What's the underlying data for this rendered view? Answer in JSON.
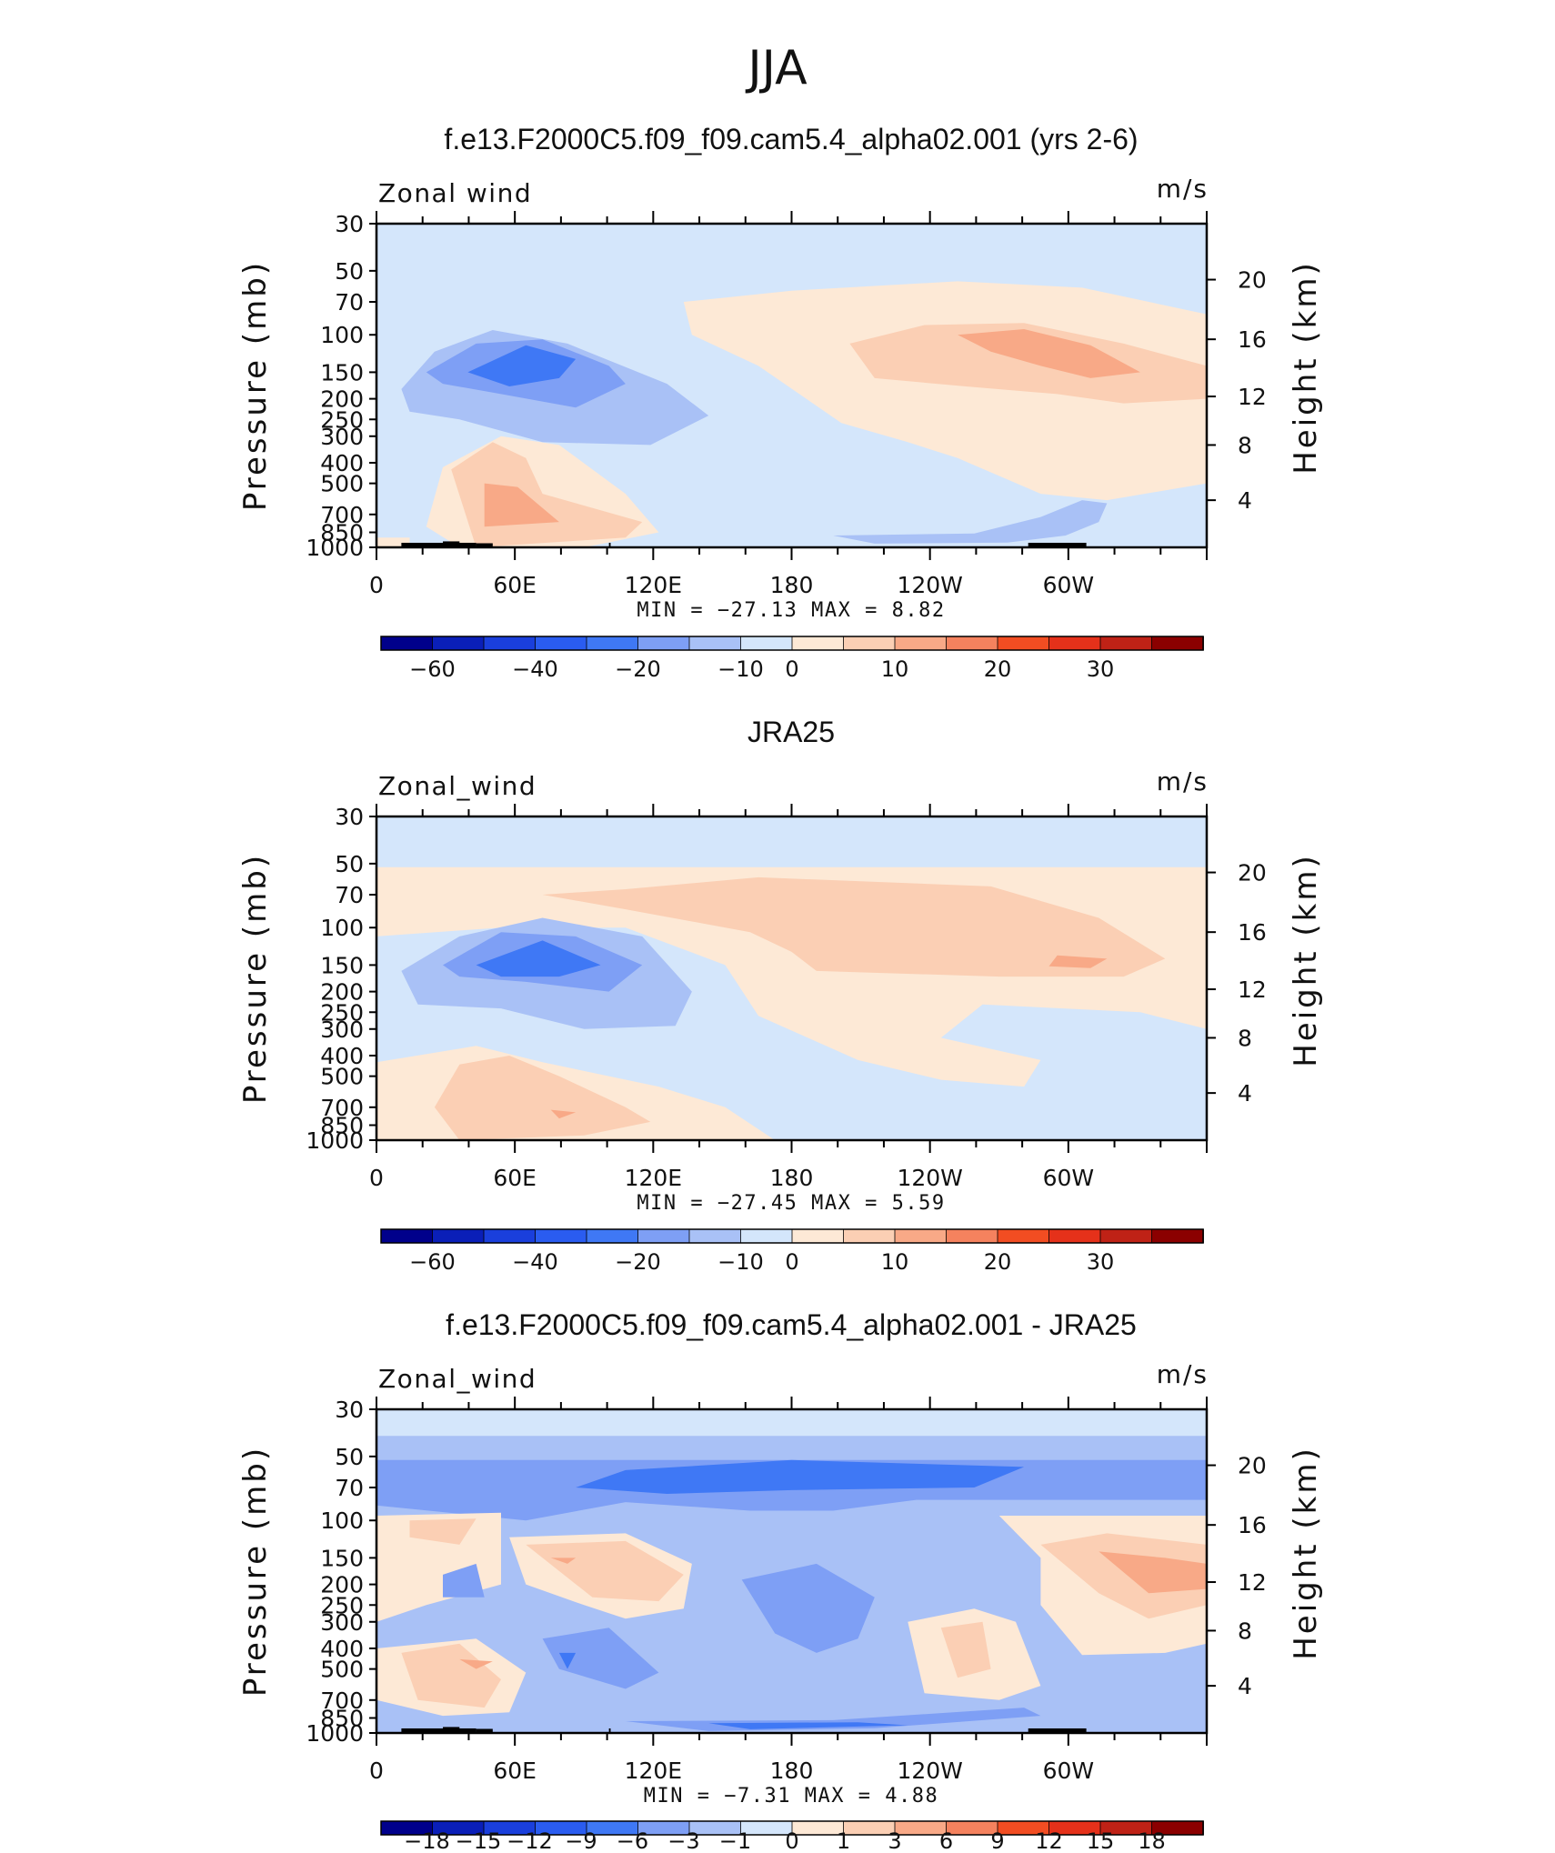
{
  "page_title": "JJA",
  "colors": {
    "dark_blue": "#00008b",
    "blue1": "#0a1fb8",
    "blue2": "#1a3fdc",
    "blue3": "#2a5cf0",
    "blue4": "#3f78f5",
    "blue5": "#7e9ff5",
    "blue6": "#a9c1f6",
    "blue7": "#d4e6fb",
    "orange1": "#fde9d6",
    "orange2": "#fbcfb4",
    "orange3": "#f8a987",
    "orange4": "#f5825e",
    "red1": "#f24d22",
    "red2": "#e5311a",
    "red3": "#bf2216",
    "dark_red": "#8b0000"
  },
  "chart_data": [
    {
      "type": "heatmap",
      "title": "f.e13.F2000C5.f09_f09.cam5.4_alpha02.001 (yrs 2-6)",
      "left_label": "Zonal wind",
      "units": "m/s",
      "ylabel": "Pressure (mb)",
      "y2label": "Height (km)",
      "pressure_ticks": [
        "30",
        "50",
        "70",
        "100",
        "150",
        "200",
        "250",
        "300",
        "400",
        "500",
        "700",
        "850",
        "1000"
      ],
      "height_ticks": [
        "20",
        "16",
        "12",
        "8",
        "4"
      ],
      "x_ticks": [
        "0",
        "60E",
        "120E",
        "180",
        "120W",
        "60W"
      ],
      "minmax_label": "MIN = −27.13  MAX =    8.82",
      "min": -27.13,
      "max": 8.82,
      "colorbar_labels": [
        "−60",
        "−40",
        "−20",
        "−10",
        "0",
        "10",
        "20",
        "30"
      ]
    },
    {
      "type": "heatmap",
      "title": "JRA25",
      "left_label": "Zonal_wind",
      "units": "m/s",
      "ylabel": "Pressure (mb)",
      "y2label": "Height (km)",
      "pressure_ticks": [
        "30",
        "50",
        "70",
        "100",
        "150",
        "200",
        "250",
        "300",
        "400",
        "500",
        "700",
        "850",
        "1000"
      ],
      "height_ticks": [
        "20",
        "16",
        "12",
        "8",
        "4"
      ],
      "x_ticks": [
        "0",
        "60E",
        "120E",
        "180",
        "120W",
        "60W"
      ],
      "minmax_label": "MIN = −27.45  MAX =    5.59",
      "min": -27.45,
      "max": 5.59,
      "colorbar_labels": [
        "−60",
        "−40",
        "−20",
        "−10",
        "0",
        "10",
        "20",
        "30"
      ]
    },
    {
      "type": "heatmap",
      "title": "f.e13.F2000C5.f09_f09.cam5.4_alpha02.001 - JRA25",
      "left_label": "Zonal_wind",
      "units": "m/s",
      "ylabel": "Pressure (mb)",
      "y2label": "Height (km)",
      "pressure_ticks": [
        "30",
        "50",
        "70",
        "100",
        "150",
        "200",
        "250",
        "300",
        "400",
        "500",
        "700",
        "850",
        "1000"
      ],
      "height_ticks": [
        "20",
        "16",
        "12",
        "8",
        "4"
      ],
      "x_ticks": [
        "0",
        "60E",
        "120E",
        "180",
        "120W",
        "60W"
      ],
      "minmax_label": "MIN =   −7.31  MAX =    4.88",
      "min": -7.31,
      "max": 4.88,
      "colorbar_labels": [
        "−18",
        "−15",
        "−12",
        "−9",
        "−6",
        "−3",
        "−1",
        "0",
        "1",
        "3",
        "6",
        "9",
        "12",
        "15",
        "18"
      ]
    }
  ]
}
